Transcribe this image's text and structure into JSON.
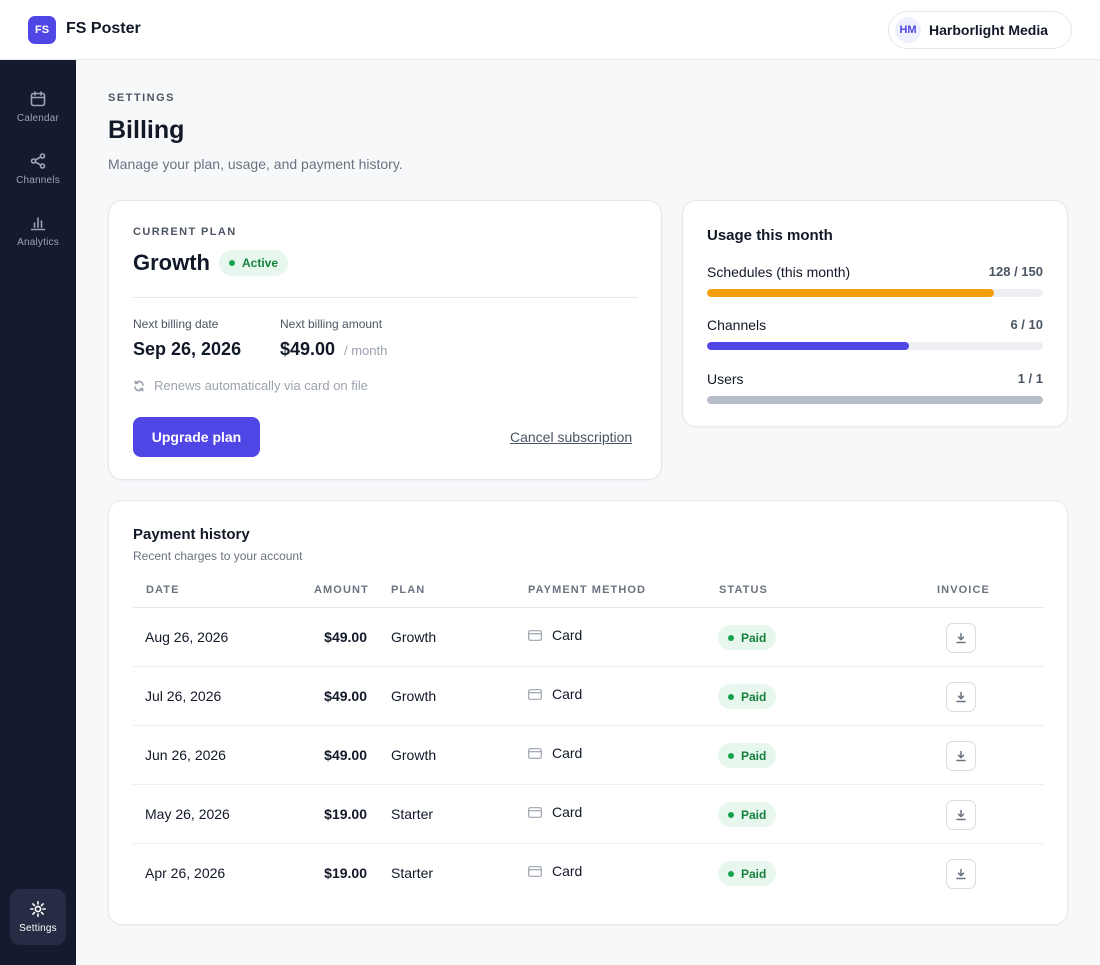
{
  "app": {
    "logo_initials": "FS",
    "name": "FS Poster"
  },
  "workspace": {
    "initials": "HM",
    "name": "Harborlight Media"
  },
  "sidebar": {
    "items": [
      {
        "label": "Calendar",
        "icon": "calendar-icon",
        "active": false
      },
      {
        "label": "Channels",
        "icon": "share-icon",
        "active": false
      },
      {
        "label": "Analytics",
        "icon": "bar-chart-icon",
        "active": false
      }
    ],
    "bottom": {
      "label": "Settings",
      "icon": "gear-icon",
      "active": true
    }
  },
  "page": {
    "eyebrow": "SETTINGS",
    "title": "Billing",
    "subtitle": "Manage your plan, usage, and payment history."
  },
  "plan": {
    "eyebrow": "CURRENT PLAN",
    "name": "Growth",
    "status": "Active",
    "next_date_label": "Next billing date",
    "next_date": "Sep 26, 2026",
    "next_amount_label": "Next billing amount",
    "next_amount": "$49.00",
    "period": "/ month",
    "renew_text": "Renews automatically via card on file",
    "upgrade_label": "Upgrade plan",
    "cancel_label": "Cancel subscription"
  },
  "usage": {
    "title": "Usage this month",
    "rows": [
      {
        "label": "Schedules (this month)",
        "value": "128 / 150",
        "fraction": 0.853,
        "color": "#f59e0b"
      },
      {
        "label": "Channels",
        "value": "6 / 10",
        "fraction": 0.6,
        "color": "#4f46e5"
      },
      {
        "label": "Users",
        "value": "1 / 1",
        "fraction": 1.0,
        "color": "#b7bcc8"
      }
    ]
  },
  "history": {
    "title": "Payment history",
    "subtitle": "Recent charges to your account",
    "columns": {
      "date": "DATE",
      "amount": "AMOUNT",
      "plan": "PLAN",
      "method": "PAYMENT METHOD",
      "status": "STATUS",
      "invoice": "INVOICE"
    },
    "rows": [
      {
        "date": "Aug 26, 2026",
        "amount": "$49.00",
        "plan": "Growth",
        "method": "Card",
        "status": "Paid"
      },
      {
        "date": "Jul 26, 2026",
        "amount": "$49.00",
        "plan": "Growth",
        "method": "Card",
        "status": "Paid"
      },
      {
        "date": "Jun 26, 2026",
        "amount": "$49.00",
        "plan": "Growth",
        "method": "Card",
        "status": "Paid"
      },
      {
        "date": "May 26, 2026",
        "amount": "$19.00",
        "plan": "Starter",
        "method": "Card",
        "status": "Paid"
      },
      {
        "date": "Apr 26, 2026",
        "amount": "$19.00",
        "plan": "Starter",
        "method": "Card",
        "status": "Paid"
      }
    ]
  },
  "colors": {
    "accent": "#4f46e5",
    "sidebar_bg": "#151a2e",
    "success": "#15803d",
    "warning": "#f59e0b"
  }
}
